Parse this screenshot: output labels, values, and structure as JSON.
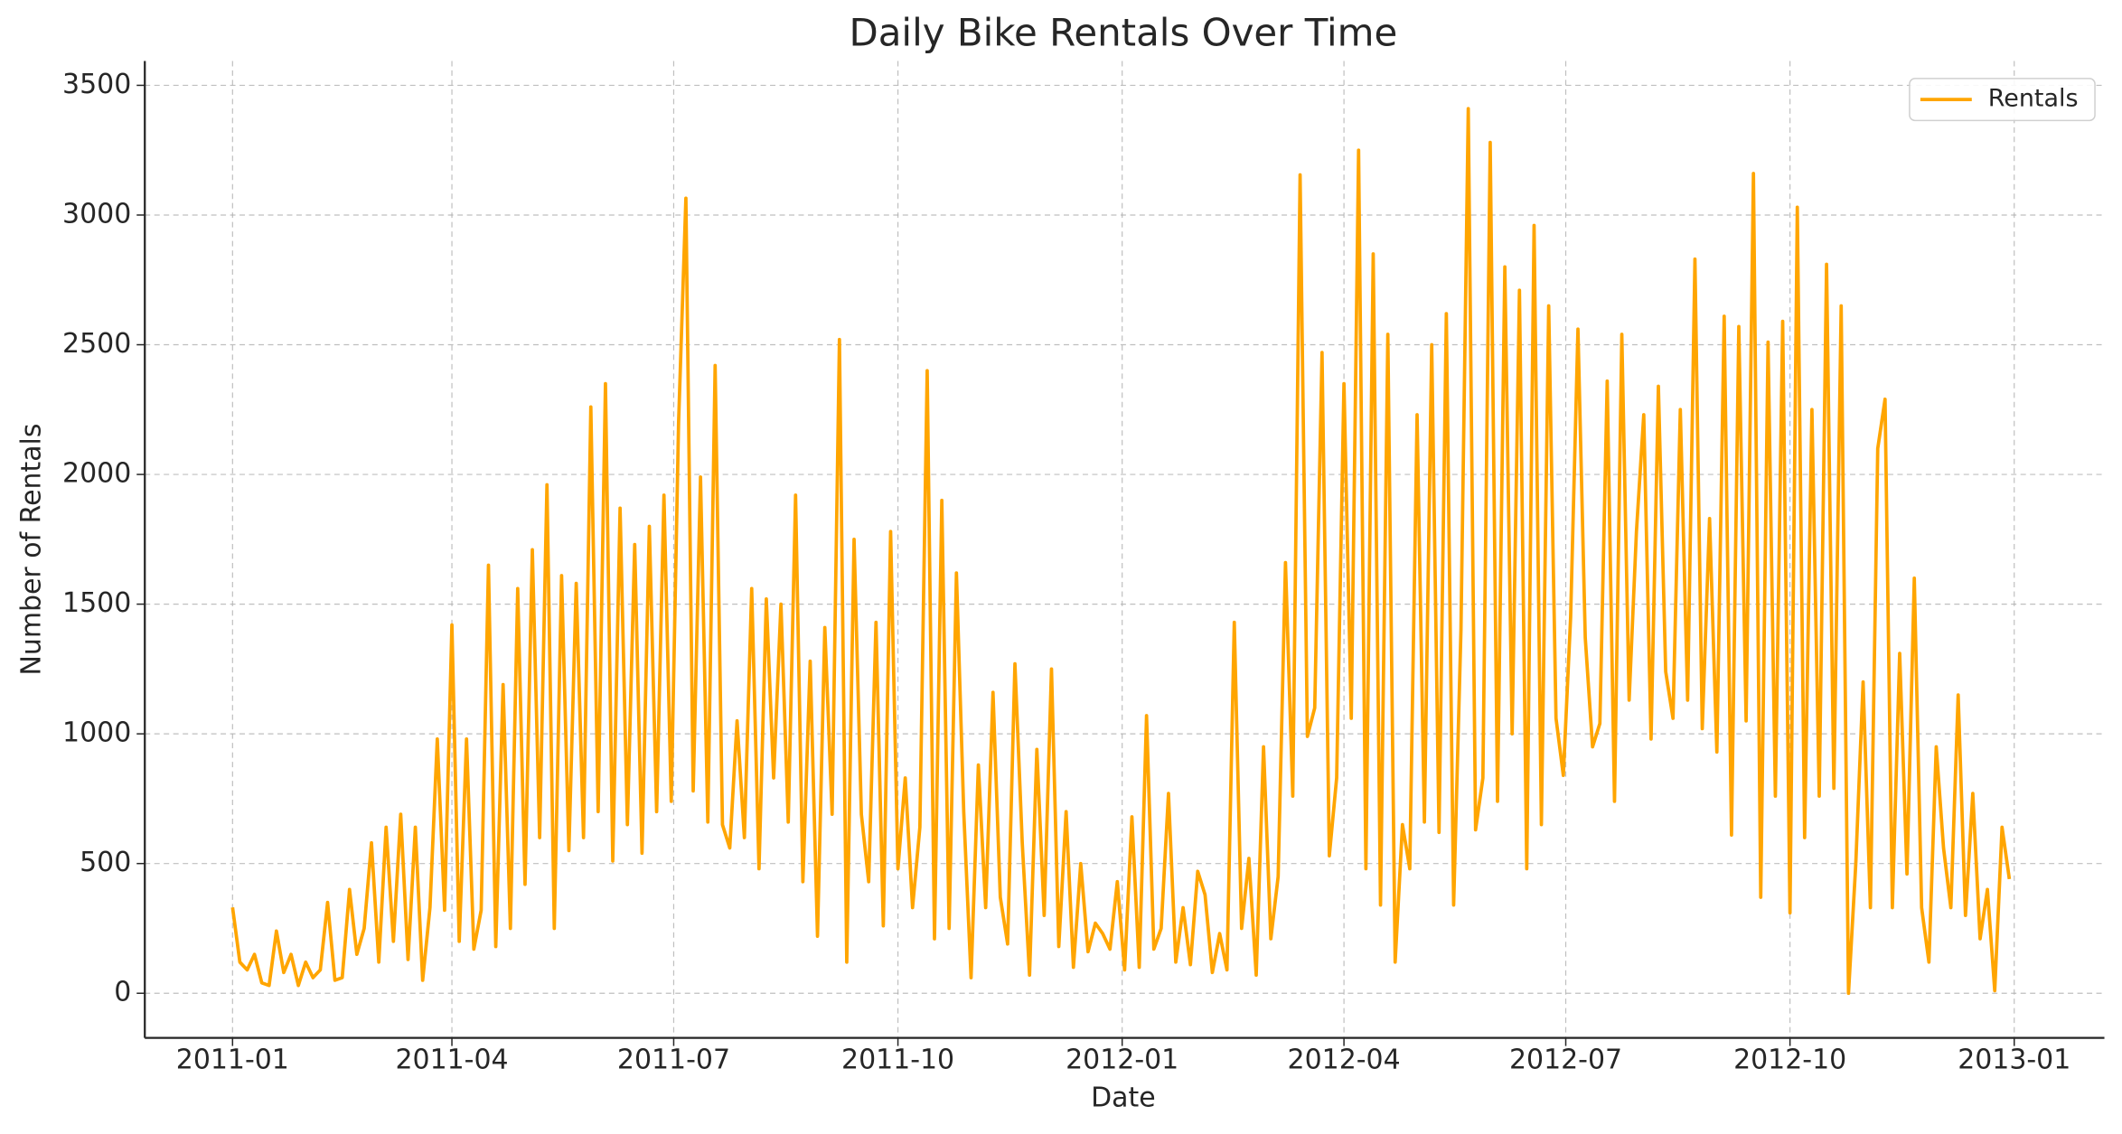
{
  "chart_data": {
    "type": "line",
    "title": "Daily Bike Rentals Over Time",
    "x_label": "Date",
    "y_label": "Number of Rentals",
    "x": [
      0,
      3,
      6,
      9,
      12,
      15,
      18,
      21,
      24,
      27,
      30,
      33,
      36,
      39,
      42,
      45,
      48,
      51,
      54,
      57,
      60,
      63,
      66,
      69,
      72,
      75,
      78,
      81,
      84,
      87,
      90,
      93,
      96,
      99,
      102,
      105,
      108,
      111,
      114,
      117,
      120,
      123,
      126,
      129,
      132,
      135,
      138,
      141,
      144,
      147,
      150,
      153,
      156,
      159,
      162,
      165,
      168,
      171,
      174,
      177,
      180,
      183,
      186,
      189,
      192,
      195,
      198,
      201,
      204,
      207,
      210,
      213,
      216,
      219,
      222,
      225,
      228,
      231,
      234,
      237,
      240,
      243,
      246,
      249,
      252,
      255,
      258,
      261,
      264,
      267,
      270,
      273,
      276,
      279,
      282,
      285,
      288,
      291,
      294,
      297,
      300,
      303,
      306,
      309,
      312,
      315,
      318,
      321,
      324,
      327,
      330,
      333,
      336,
      339,
      342,
      345,
      348,
      351,
      354,
      357,
      360,
      363,
      366,
      369,
      372,
      375,
      378,
      381,
      384,
      387,
      390,
      393,
      396,
      399,
      402,
      405,
      408,
      411,
      414,
      417,
      420,
      423,
      426,
      429,
      432,
      435,
      438,
      441,
      444,
      447,
      450,
      453,
      456,
      459,
      462,
      465,
      468,
      471,
      474,
      477,
      480,
      483,
      486,
      489,
      492,
      495,
      498,
      501,
      504,
      507,
      510,
      513,
      516,
      519,
      522,
      525,
      528,
      531,
      534,
      537,
      540,
      543,
      546,
      549,
      552,
      555,
      558,
      561,
      564,
      567,
      570,
      573,
      576,
      579,
      582,
      585,
      588,
      591,
      594,
      597,
      600,
      603,
      606,
      609,
      612,
      615,
      618,
      621,
      624,
      627,
      630,
      633,
      636,
      639,
      642,
      645,
      648,
      651,
      654,
      657,
      660,
      663,
      666,
      669,
      672,
      675,
      678,
      681,
      684,
      687,
      690,
      693,
      696,
      699,
      702,
      705,
      708,
      711,
      714,
      717,
      720,
      723,
      726,
      729
    ],
    "series": [
      {
        "name": "Rentals",
        "color": "#ffa500",
        "values": [
          331,
          120,
          90,
          150,
          40,
          30,
          240,
          80,
          150,
          30,
          120,
          60,
          90,
          350,
          50,
          60,
          400,
          150,
          250,
          580,
          120,
          640,
          200,
          690,
          130,
          640,
          50,
          330,
          980,
          320,
          1420,
          200,
          980,
          170,
          320,
          1650,
          180,
          1190,
          250,
          1560,
          420,
          1710,
          600,
          1960,
          250,
          1610,
          550,
          1580,
          600,
          2260,
          700,
          2350,
          510,
          1870,
          650,
          1730,
          540,
          1800,
          700,
          1920,
          740,
          2200,
          3065,
          780,
          1990,
          660,
          2420,
          650,
          560,
          1050,
          600,
          1560,
          480,
          1520,
          830,
          1500,
          660,
          1920,
          430,
          1280,
          220,
          1410,
          690,
          2520,
          120,
          1750,
          690,
          430,
          1430,
          260,
          1780,
          480,
          830,
          330,
          640,
          2400,
          210,
          1900,
          250,
          1620,
          700,
          60,
          880,
          330,
          1160,
          370,
          190,
          1270,
          580,
          70,
          940,
          300,
          1250,
          180,
          700,
          100,
          500,
          160,
          270,
          230,
          170,
          430,
          90,
          680,
          100,
          1070,
          170,
          250,
          770,
          120,
          330,
          110,
          470,
          380,
          80,
          230,
          90,
          1430,
          250,
          520,
          70,
          950,
          210,
          450,
          1660,
          760,
          3155,
          990,
          1100,
          2470,
          530,
          830,
          2350,
          1060,
          3250,
          480,
          2850,
          340,
          2540,
          120,
          650,
          480,
          2230,
          660,
          2500,
          620,
          2620,
          340,
          1400,
          3410,
          630,
          830,
          3280,
          740,
          2800,
          1000,
          2710,
          480,
          2960,
          650,
          2650,
          1060,
          840,
          1450,
          2560,
          1370,
          950,
          1040,
          2360,
          740,
          2540,
          1130,
          1780,
          2230,
          980,
          2340,
          1240,
          1060,
          2250,
          1130,
          2830,
          1020,
          1830,
          930,
          2610,
          610,
          2570,
          1050,
          3160,
          370,
          2510,
          760,
          2590,
          310,
          3030,
          600,
          2250,
          760,
          2810,
          790,
          2650,
          0,
          500,
          1200,
          330,
          2100,
          2290,
          330,
          1310,
          460,
          1600,
          330,
          120,
          950,
          560,
          330,
          1150,
          300,
          770,
          210,
          400,
          10,
          640,
          440
        ]
      }
    ],
    "xlim": [
      -36,
      768
    ],
    "xticks": [
      {
        "value": 0,
        "label": "2011-01"
      },
      {
        "value": 90,
        "label": "2011-04"
      },
      {
        "value": 181,
        "label": "2011-07"
      },
      {
        "value": 273,
        "label": "2011-10"
      },
      {
        "value": 365,
        "label": "2012-01"
      },
      {
        "value": 456,
        "label": "2012-04"
      },
      {
        "value": 547,
        "label": "2012-07"
      },
      {
        "value": 639,
        "label": "2012-10"
      },
      {
        "value": 731,
        "label": "2013-01"
      }
    ],
    "ylim": [
      -172,
      3594
    ],
    "yticks": [
      0,
      500,
      1000,
      1500,
      2000,
      2500,
      3000,
      3500
    ],
    "grid": true,
    "legend": "upper right"
  }
}
